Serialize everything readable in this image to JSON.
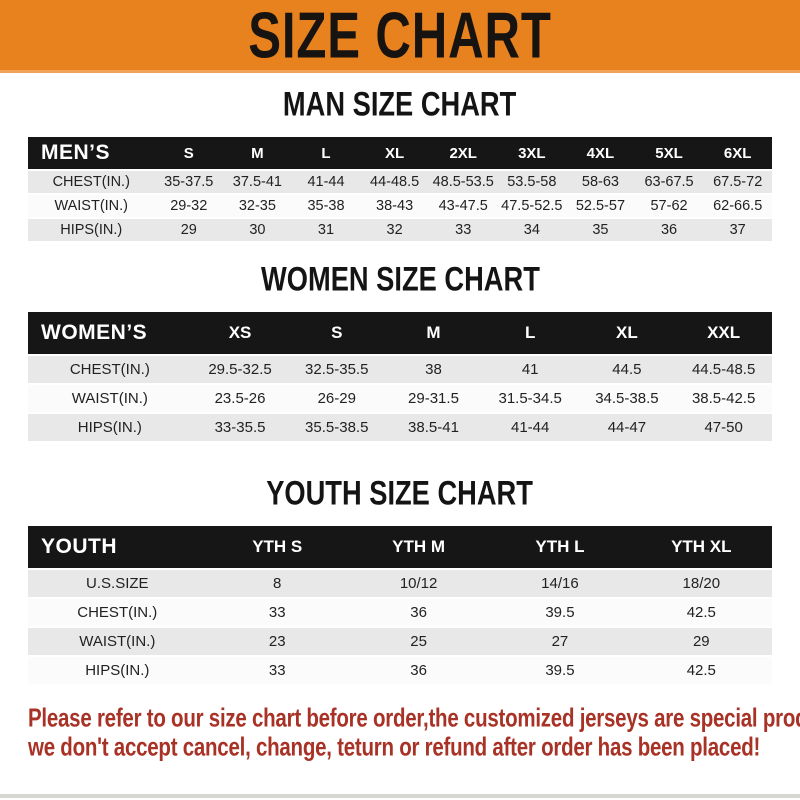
{
  "banner": {
    "title": "SIZE CHART"
  },
  "colors": {
    "banner_bg": "#E8821E",
    "header_bar_bg": "#161616",
    "row_stripe": "#E8E8E8",
    "footer_text": "#A93226"
  },
  "sections": [
    {
      "id": "men",
      "heading": "MAN SIZE CHART",
      "corner": "MEN’S",
      "sizes": [
        "S",
        "M",
        "L",
        "XL",
        "2XL",
        "3XL",
        "4XL",
        "5XL",
        "6XL"
      ],
      "rows": [
        {
          "label": "CHEST(IN.)",
          "values": [
            "35-37.5",
            "37.5-41",
            "41-44",
            "44-48.5",
            "48.5-53.5",
            "53.5-58",
            "58-63",
            "63-67.5",
            "67.5-72"
          ]
        },
        {
          "label": "WAIST(IN.)",
          "values": [
            "29-32",
            "32-35",
            "35-38",
            "38-43",
            "43-47.5",
            "47.5-52.5",
            "52.5-57",
            "57-62",
            "62-66.5"
          ]
        },
        {
          "label": "HIPS(IN.)",
          "values": [
            "29",
            "30",
            "31",
            "32",
            "33",
            "34",
            "35",
            "36",
            "37"
          ]
        }
      ]
    },
    {
      "id": "women",
      "heading": "WOMEN SIZE CHART",
      "corner": "WOMEN’S",
      "sizes": [
        "XS",
        "S",
        "M",
        "L",
        "XL",
        "XXL"
      ],
      "rows": [
        {
          "label": "CHEST(IN.)",
          "values": [
            "29.5-32.5",
            "32.5-35.5",
            "38",
            "41",
            "44.5",
            "44.5-48.5"
          ]
        },
        {
          "label": "WAIST(IN.)",
          "values": [
            "23.5-26",
            "26-29",
            "29-31.5",
            "31.5-34.5",
            "34.5-38.5",
            "38.5-42.5"
          ]
        },
        {
          "label": "HIPS(IN.)",
          "values": [
            "33-35.5",
            "35.5-38.5",
            "38.5-41",
            "41-44",
            "44-47",
            "47-50"
          ]
        }
      ]
    },
    {
      "id": "youth",
      "heading": "YOUTH SIZE CHART",
      "corner": "YOUTH",
      "sizes": [
        "YTH S",
        "YTH M",
        "YTH L",
        "YTH XL"
      ],
      "rows": [
        {
          "label": "U.S.SIZE",
          "values": [
            "8",
            "10/12",
            "14/16",
            "18/20"
          ]
        },
        {
          "label": "CHEST(IN.)",
          "values": [
            "33",
            "36",
            "39.5",
            "42.5"
          ]
        },
        {
          "label": "WAIST(IN.)",
          "values": [
            "23",
            "25",
            "27",
            "29"
          ]
        },
        {
          "label": "HIPS(IN.)",
          "values": [
            "33",
            "36",
            "39.5",
            "42.5"
          ]
        }
      ]
    }
  ],
  "footer": {
    "line1": "Please refer to our size chart before order,the customized jerseys are special products,",
    "line2": "we don't accept cancel, change, teturn or refund after order has been placed!"
  },
  "chart_data": [
    {
      "type": "table",
      "title": "MAN SIZE CHART",
      "columns": [
        "MEN’S",
        "S",
        "M",
        "L",
        "XL",
        "2XL",
        "3XL",
        "4XL",
        "5XL",
        "6XL"
      ],
      "rows": [
        [
          "CHEST(IN.)",
          "35-37.5",
          "37.5-41",
          "41-44",
          "44-48.5",
          "48.5-53.5",
          "53.5-58",
          "58-63",
          "63-67.5",
          "67.5-72"
        ],
        [
          "WAIST(IN.)",
          "29-32",
          "32-35",
          "35-38",
          "38-43",
          "43-47.5",
          "47.5-52.5",
          "52.5-57",
          "57-62",
          "62-66.5"
        ],
        [
          "HIPS(IN.)",
          "29",
          "30",
          "31",
          "32",
          "33",
          "34",
          "35",
          "36",
          "37"
        ]
      ]
    },
    {
      "type": "table",
      "title": "WOMEN SIZE CHART",
      "columns": [
        "WOMEN’S",
        "XS",
        "S",
        "M",
        "L",
        "XL",
        "XXL"
      ],
      "rows": [
        [
          "CHEST(IN.)",
          "29.5-32.5",
          "32.5-35.5",
          "38",
          "41",
          "44.5",
          "44.5-48.5"
        ],
        [
          "WAIST(IN.)",
          "23.5-26",
          "26-29",
          "29-31.5",
          "31.5-34.5",
          "34.5-38.5",
          "38.5-42.5"
        ],
        [
          "HIPS(IN.)",
          "33-35.5",
          "35.5-38.5",
          "38.5-41",
          "41-44",
          "44-47",
          "47-50"
        ]
      ]
    },
    {
      "type": "table",
      "title": "YOUTH SIZE CHART",
      "columns": [
        "YOUTH",
        "YTH S",
        "YTH M",
        "YTH L",
        "YTH XL"
      ],
      "rows": [
        [
          "U.S.SIZE",
          "8",
          "10/12",
          "14/16",
          "18/20"
        ],
        [
          "CHEST(IN.)",
          "33",
          "36",
          "39.5",
          "42.5"
        ],
        [
          "WAIST(IN.)",
          "23",
          "25",
          "27",
          "29"
        ],
        [
          "HIPS(IN.)",
          "33",
          "36",
          "39.5",
          "42.5"
        ]
      ]
    }
  ]
}
